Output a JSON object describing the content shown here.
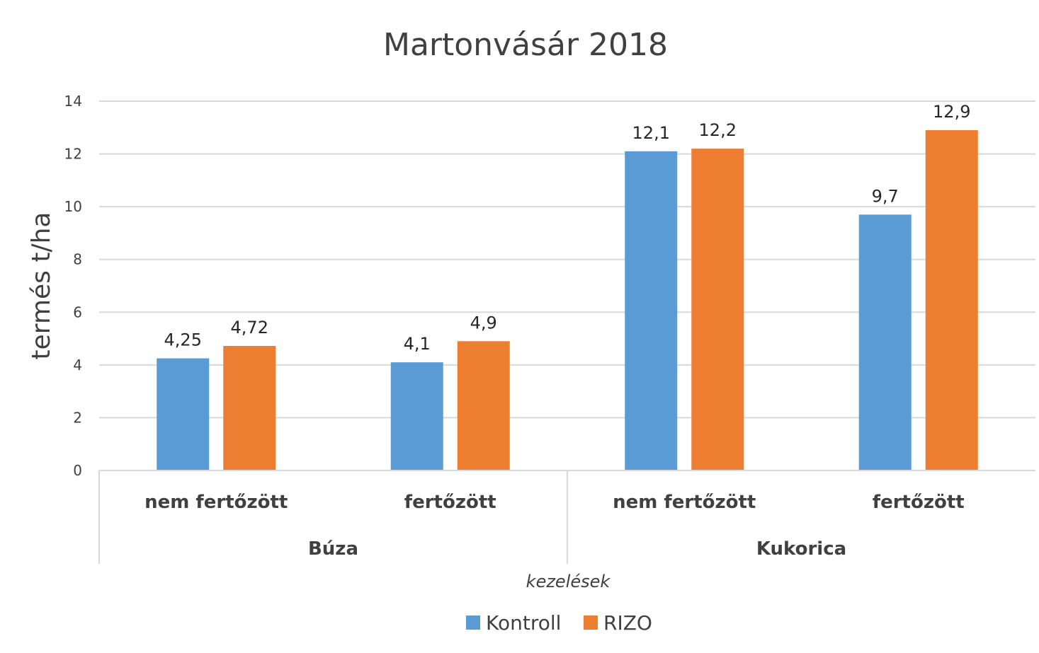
{
  "chart_data": {
    "type": "bar",
    "title": "Martonvásár 2018",
    "ylabel": "termés t/ha",
    "xlabel": "kezelések",
    "ylim": [
      0,
      14
    ],
    "ytick_step": 2,
    "ytick_labels": [
      "0",
      "2",
      "4",
      "6",
      "8",
      "10",
      "12",
      "14"
    ],
    "grid": true,
    "legend_position": "bottom",
    "groups": [
      {
        "name": "Búza",
        "categories": [
          "nem fertőzött",
          "fertőzött"
        ]
      },
      {
        "name": "Kukorica",
        "categories": [
          "nem fertőzött",
          "fertőzött"
        ]
      }
    ],
    "categories": [
      "nem fertőzött",
      "fertőzött",
      "nem fertőzött",
      "fertőzött"
    ],
    "series": [
      {
        "name": "Kontroll",
        "color": "#5B9BD5",
        "values": [
          4.25,
          4.1,
          12.1,
          9.7
        ],
        "labels": [
          "4,25",
          "4,1",
          "12,1",
          "9,7"
        ]
      },
      {
        "name": "RIZO",
        "color": "#ED7D31",
        "values": [
          4.72,
          4.9,
          12.2,
          12.9
        ],
        "labels": [
          "4,72",
          "4,9",
          "12,2",
          "12,9"
        ]
      }
    ]
  }
}
